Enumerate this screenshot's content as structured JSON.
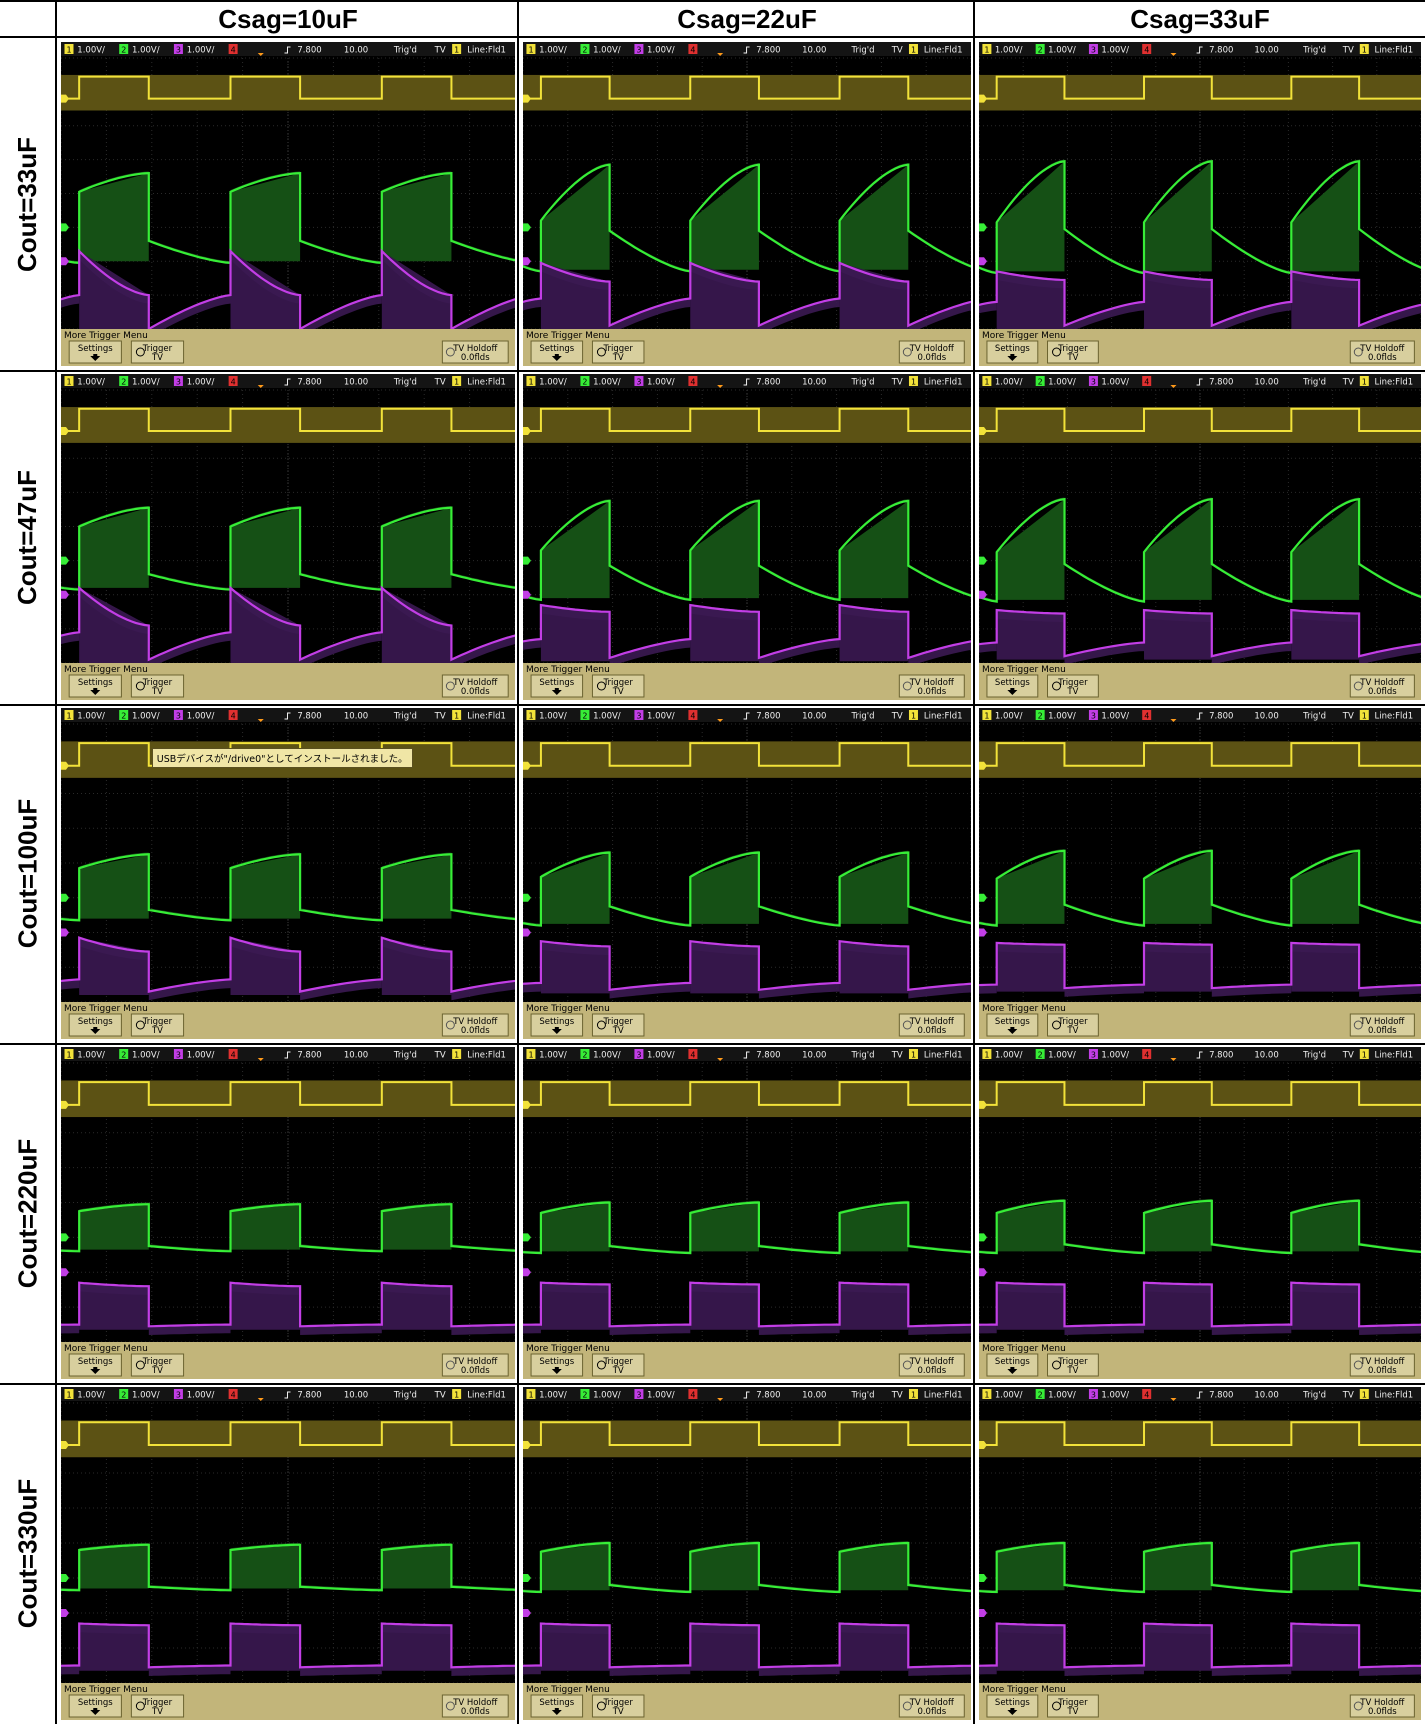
{
  "column_headers": [
    "Csag=10uF",
    "Csag=22uF",
    "Csag=33uF"
  ],
  "row_headers": [
    "Cout=33uF",
    "Cout=47uF",
    "Cout=100uF",
    "Cout=220uF",
    "Cout=330uF"
  ],
  "scope": {
    "ch1_scale": "1.00V/",
    "ch2_scale": "1.00V/",
    "ch3_scale": "1.00V/",
    "ch1_num": "1",
    "ch2_num": "2",
    "ch3_num": "3",
    "ch4_num": "4",
    "timebase_delay": "7.800",
    "timebase_scale": "10.00",
    "trig_status": "Trig'd",
    "trig_mode": "TV",
    "trig_src": "1",
    "trig_line": "Line:Fld1",
    "menu_title": "More Trigger Menu",
    "settings_label": "Settings",
    "trigger_label": "Trigger",
    "trigger_sub": "TV",
    "holdoff_label": "TV Holdoff",
    "holdoff_value": "0.0flds",
    "usb_notice": "USBデバイスが\"/drive0\"としてインストールされました。",
    "colors": {
      "ch1": "#f2e23a",
      "ch2": "#37ee37",
      "ch3": "#c23ee6",
      "ch4": "#e03030",
      "menu_bg": "#c2b57a",
      "screen_bg": "#000000"
    },
    "icons": {
      "settings_arrow": "down-arrow-icon",
      "trigger_cycle": "cycle-arrow-icon",
      "holdoff_knob": "knob-icon"
    }
  },
  "cells": [
    {
      "row": 0,
      "col": 0,
      "green_high": [
        4.05,
        4.6
      ],
      "green_low": [
        2.6,
        1.95
      ],
      "purple_high": [
        2.3,
        1.0
      ],
      "purple_low": [
        0.0,
        1.0
      ],
      "show_notice": false
    },
    {
      "row": 0,
      "col": 1,
      "green_high": [
        3.2,
        4.85
      ],
      "green_low": [
        2.9,
        1.7
      ],
      "purple_high": [
        1.95,
        1.4
      ],
      "purple_low": [
        0.1,
        0.9
      ],
      "show_notice": false
    },
    {
      "row": 0,
      "col": 2,
      "green_high": [
        3.15,
        4.95
      ],
      "green_low": [
        2.95,
        1.65
      ],
      "purple_high": [
        1.7,
        1.45
      ],
      "purple_low": [
        0.1,
        0.8
      ],
      "show_notice": false
    },
    {
      "row": 1,
      "col": 0,
      "green_high": [
        4.0,
        4.55
      ],
      "green_low": [
        2.6,
        2.15
      ],
      "purple_high": [
        2.2,
        1.1
      ],
      "purple_low": [
        0.1,
        0.9
      ],
      "show_notice": false
    },
    {
      "row": 1,
      "col": 1,
      "green_high": [
        3.3,
        4.75
      ],
      "green_low": [
        2.85,
        1.85
      ],
      "purple_high": [
        1.7,
        1.5
      ],
      "purple_low": [
        0.15,
        0.7
      ],
      "show_notice": false
    },
    {
      "row": 1,
      "col": 2,
      "green_high": [
        3.25,
        4.8
      ],
      "green_low": [
        2.9,
        1.8
      ],
      "purple_high": [
        1.55,
        1.45
      ],
      "purple_low": [
        0.2,
        0.6
      ],
      "show_notice": false
    },
    {
      "row": 2,
      "col": 0,
      "green_high": [
        3.85,
        4.25
      ],
      "green_low": [
        2.65,
        2.35
      ],
      "purple_high": [
        1.85,
        1.45
      ],
      "purple_low": [
        0.3,
        0.65
      ],
      "show_notice": true
    },
    {
      "row": 2,
      "col": 1,
      "green_high": [
        3.6,
        4.3
      ],
      "green_low": [
        2.75,
        2.2
      ],
      "purple_high": [
        1.75,
        1.6
      ],
      "purple_low": [
        0.35,
        0.55
      ],
      "show_notice": false
    },
    {
      "row": 2,
      "col": 2,
      "green_high": [
        3.55,
        4.35
      ],
      "green_low": [
        2.8,
        2.2
      ],
      "purple_high": [
        1.7,
        1.65
      ],
      "purple_low": [
        0.4,
        0.5
      ],
      "show_notice": false
    },
    {
      "row": 3,
      "col": 0,
      "green_high": [
        3.75,
        3.95
      ],
      "green_low": [
        2.75,
        2.6
      ],
      "purple_high": [
        1.7,
        1.6
      ],
      "purple_low": [
        0.45,
        0.5
      ],
      "show_notice": false
    },
    {
      "row": 3,
      "col": 1,
      "green_high": [
        3.7,
        4.0
      ],
      "green_low": [
        2.75,
        2.55
      ],
      "purple_high": [
        1.7,
        1.65
      ],
      "purple_low": [
        0.45,
        0.5
      ],
      "show_notice": false
    },
    {
      "row": 3,
      "col": 2,
      "green_high": [
        3.7,
        4.05
      ],
      "green_low": [
        2.8,
        2.55
      ],
      "purple_high": [
        1.7,
        1.65
      ],
      "purple_low": [
        0.45,
        0.5
      ],
      "show_notice": false
    },
    {
      "row": 4,
      "col": 0,
      "green_high": [
        3.8,
        3.95
      ],
      "green_low": [
        2.75,
        2.65
      ],
      "purple_high": [
        1.7,
        1.65
      ],
      "purple_low": [
        0.45,
        0.5
      ],
      "show_notice": false
    },
    {
      "row": 4,
      "col": 1,
      "green_high": [
        3.75,
        4.0
      ],
      "green_low": [
        2.8,
        2.6
      ],
      "purple_high": [
        1.7,
        1.65
      ],
      "purple_low": [
        0.45,
        0.5
      ],
      "show_notice": false
    },
    {
      "row": 4,
      "col": 2,
      "green_high": [
        3.75,
        4.0
      ],
      "green_low": [
        2.8,
        2.6
      ],
      "purple_high": [
        1.7,
        1.65
      ],
      "purple_low": [
        0.45,
        0.5
      ],
      "show_notice": false
    }
  ]
}
